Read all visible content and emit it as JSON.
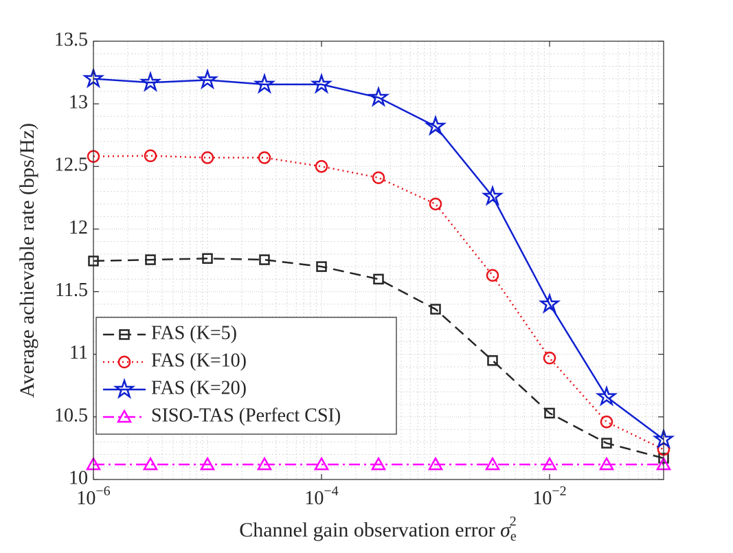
{
  "chart_data": {
    "type": "line",
    "x_label": "Channel gain observation error ",
    "x_label_symbol": "σ",
    "x_label_sub": "e",
    "x_label_sup": "2",
    "y_label": "Average achievable rate (bps/Hz)",
    "x": [
      1e-06,
      3.162e-06,
      1e-05,
      3.162e-05,
      0.0001,
      0.0003162,
      0.001,
      0.003162,
      0.01,
      0.03162,
      0.1
    ],
    "xscale": "log",
    "xlim": [
      1e-06,
      0.1
    ],
    "xticks": [
      {
        "value": 1e-06,
        "label": "10",
        "exponent": "−6"
      },
      {
        "value": 0.0001,
        "label": "10",
        "exponent": "−4"
      },
      {
        "value": 0.01,
        "label": "10",
        "exponent": "−2"
      }
    ],
    "ylim": [
      10,
      13.5
    ],
    "yticks": [
      10,
      10.5,
      11,
      11.5,
      12,
      12.5,
      13,
      13.5
    ],
    "grid": true,
    "minor_grid": true,
    "legend": "lower left",
    "series": [
      {
        "name": "FAS (K=5)",
        "color": "#262626",
        "linestyle": "dashed",
        "marker": "square",
        "values": [
          11.745,
          11.755,
          11.765,
          11.755,
          11.7,
          11.6,
          11.36,
          10.95,
          10.53,
          10.29,
          10.17
        ]
      },
      {
        "name": "FAS (K=10)",
        "color": "#e8141c",
        "linestyle": "dotted",
        "marker": "circle",
        "values": [
          12.58,
          12.585,
          12.57,
          12.57,
          12.5,
          12.41,
          12.2,
          11.63,
          10.97,
          10.46,
          10.24
        ]
      },
      {
        "name": "FAS (K=20)",
        "color": "#1020d0",
        "linestyle": "solid",
        "marker": "star",
        "values": [
          13.2,
          13.17,
          13.19,
          13.155,
          13.155,
          13.05,
          12.82,
          12.26,
          11.4,
          10.66,
          10.32
        ]
      },
      {
        "name": "SISO-TAS (Perfect CSI)",
        "color": "#ff00ff",
        "linestyle": "dashdot",
        "marker": "triangle",
        "values": [
          10.12,
          10.12,
          10.12,
          10.12,
          10.12,
          10.12,
          10.12,
          10.12,
          10.12,
          10.12,
          10.12
        ]
      }
    ]
  }
}
